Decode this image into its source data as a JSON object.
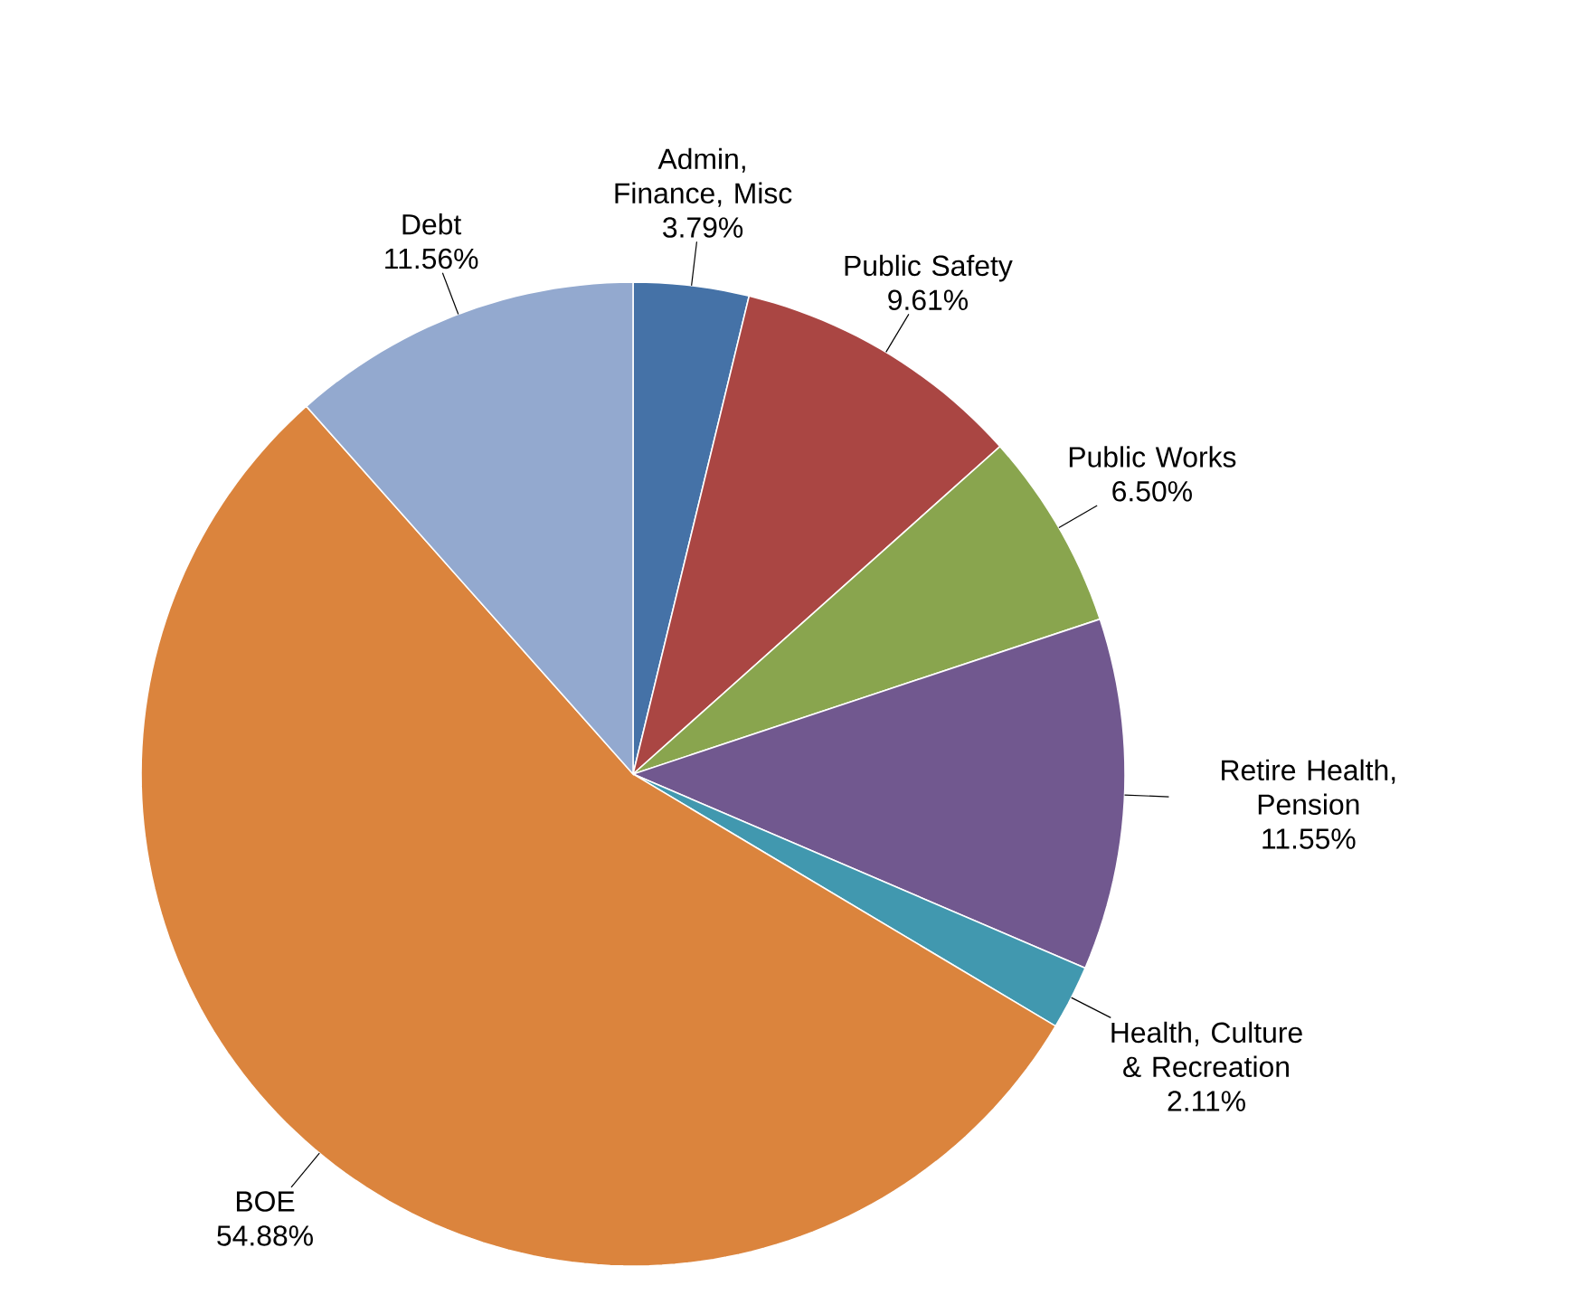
{
  "chart_data": {
    "type": "pie",
    "categories": [
      "Admin, Finance, Misc",
      "Public Safety",
      "Public Works",
      "Retire Health, Pension",
      "Health, Culture & Recreation",
      "BOE",
      "Debt"
    ],
    "values": [
      3.79,
      9.61,
      6.5,
      11.55,
      2.11,
      54.88,
      11.56
    ],
    "colors": [
      "#4572a7",
      "#aa4643",
      "#89a54e",
      "#71588f",
      "#4198af",
      "#db843d",
      "#93a9cf"
    ],
    "value_labels": [
      "3.79%",
      "9.61%",
      "6.50%",
      "11.55%",
      "2.11%",
      "54.88%",
      "11.56%"
    ]
  }
}
